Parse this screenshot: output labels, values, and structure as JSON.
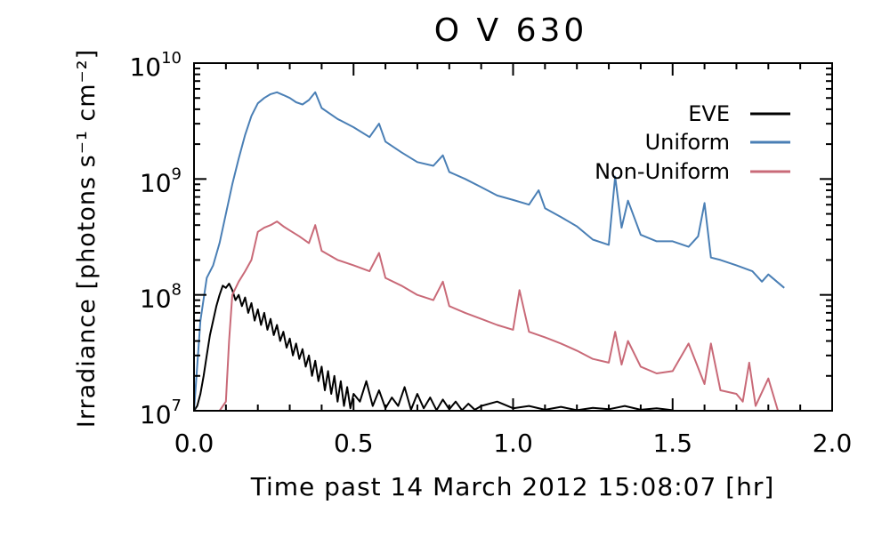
{
  "chart_data": {
    "type": "line",
    "title": "O V 630",
    "xlabel": "Time past 14 March 2012 15:08:07 [hr]",
    "ylabel": "Irradiance [photons s⁻¹ cm⁻²]",
    "xlim": [
      0.0,
      2.0
    ],
    "ylim": [
      10000000,
      10000000000
    ],
    "yscale": "log",
    "x_ticks": [
      "0.0",
      "0.5",
      "1.0",
      "1.5",
      "2.0"
    ],
    "y_ticks": [
      {
        "value": 10000000,
        "base": "10",
        "exp": "7"
      },
      {
        "value": 100000000,
        "base": "10",
        "exp": "8"
      },
      {
        "value": 1000000000,
        "base": "10",
        "exp": "9"
      },
      {
        "value": 10000000000,
        "base": "10",
        "exp": "10"
      }
    ],
    "legend_position": "top-right",
    "grid": false,
    "series": [
      {
        "name": "EVE",
        "color": "#000000",
        "x": [
          0.0,
          0.01,
          0.02,
          0.03,
          0.04,
          0.05,
          0.06,
          0.07,
          0.08,
          0.09,
          0.1,
          0.11,
          0.12,
          0.13,
          0.14,
          0.15,
          0.16,
          0.17,
          0.18,
          0.19,
          0.2,
          0.21,
          0.22,
          0.23,
          0.24,
          0.25,
          0.26,
          0.27,
          0.28,
          0.29,
          0.3,
          0.31,
          0.32,
          0.33,
          0.34,
          0.35,
          0.36,
          0.37,
          0.38,
          0.39,
          0.4,
          0.41,
          0.42,
          0.43,
          0.44,
          0.45,
          0.46,
          0.47,
          0.48,
          0.49,
          0.5,
          0.52,
          0.54,
          0.56,
          0.58,
          0.6,
          0.62,
          0.64,
          0.66,
          0.68,
          0.7,
          0.72,
          0.74,
          0.76,
          0.78,
          0.8,
          0.82,
          0.84,
          0.86,
          0.88,
          0.9,
          0.95,
          1.0,
          1.05,
          1.1,
          1.15,
          1.2,
          1.25,
          1.3,
          1.35,
          1.4,
          1.45,
          1.5
        ],
        "y": [
          10000000,
          11000000,
          14000000,
          20000000,
          30000000,
          45000000,
          60000000,
          80000000,
          100000000,
          120000000,
          115000000,
          125000000,
          110000000,
          90000000,
          100000000,
          80000000,
          95000000,
          70000000,
          85000000,
          60000000,
          75000000,
          55000000,
          70000000,
          50000000,
          62000000,
          45000000,
          55000000,
          40000000,
          48000000,
          35000000,
          42000000,
          30000000,
          38000000,
          28000000,
          34000000,
          24000000,
          30000000,
          20000000,
          27000000,
          18000000,
          24000000,
          15000000,
          22000000,
          14000000,
          20000000,
          12000000,
          18000000,
          11000000,
          16000000,
          10500000,
          14000000,
          12000000,
          18000000,
          11000000,
          15000000,
          10500000,
          13000000,
          11000000,
          16000000,
          10200000,
          14000000,
          10500000,
          13000000,
          10100000,
          12500000,
          10300000,
          12000000,
          10100000,
          11500000,
          10200000,
          11000000,
          12000000,
          10500000,
          11000000,
          10200000,
          10800000,
          10100000,
          10600000,
          10300000,
          11000000,
          10200000,
          10500000,
          10100000
        ]
      },
      {
        "name": "Uniform",
        "color": "#4a7fb5",
        "x": [
          0.0,
          0.02,
          0.04,
          0.06,
          0.08,
          0.1,
          0.12,
          0.14,
          0.16,
          0.18,
          0.2,
          0.22,
          0.24,
          0.26,
          0.28,
          0.3,
          0.32,
          0.34,
          0.36,
          0.38,
          0.4,
          0.45,
          0.5,
          0.55,
          0.58,
          0.6,
          0.65,
          0.7,
          0.75,
          0.78,
          0.8,
          0.85,
          0.9,
          0.95,
          1.0,
          1.05,
          1.08,
          1.1,
          1.15,
          1.2,
          1.25,
          1.3,
          1.32,
          1.34,
          1.36,
          1.4,
          1.45,
          1.5,
          1.55,
          1.58,
          1.6,
          1.62,
          1.65,
          1.7,
          1.75,
          1.78,
          1.8,
          1.85
        ],
        "y": [
          10000000,
          60000000,
          140000000,
          180000000,
          280000000,
          500000000,
          900000000,
          1500000000,
          2400000000,
          3500000000,
          4500000000,
          5000000000,
          5400000000,
          5600000000,
          5300000000,
          5000000000,
          4600000000,
          4400000000,
          4800000000,
          5600000000,
          4100000000,
          3300000000,
          2800000000,
          2300000000,
          3000000000,
          2100000000,
          1700000000,
          1400000000,
          1300000000,
          1600000000,
          1150000000,
          1000000000,
          850000000,
          720000000,
          660000000,
          600000000,
          800000000,
          560000000,
          470000000,
          390000000,
          300000000,
          270000000,
          1050000000,
          380000000,
          650000000,
          330000000,
          290000000,
          290000000,
          260000000,
          320000000,
          620000000,
          210000000,
          200000000,
          180000000,
          160000000,
          130000000,
          150000000,
          115000000
        ]
      },
      {
        "name": "Non-Uniform",
        "color": "#c96a78",
        "x": [
          0.0,
          0.05,
          0.08,
          0.1,
          0.11,
          0.12,
          0.14,
          0.16,
          0.18,
          0.2,
          0.22,
          0.24,
          0.26,
          0.28,
          0.3,
          0.33,
          0.36,
          0.38,
          0.4,
          0.45,
          0.5,
          0.55,
          0.58,
          0.6,
          0.65,
          0.7,
          0.75,
          0.78,
          0.8,
          0.85,
          0.9,
          0.95,
          1.0,
          1.02,
          1.05,
          1.1,
          1.15,
          1.2,
          1.25,
          1.3,
          1.32,
          1.34,
          1.36,
          1.4,
          1.45,
          1.5,
          1.55,
          1.6,
          1.62,
          1.65,
          1.7,
          1.72,
          1.74,
          1.76,
          1.8,
          1.83
        ],
        "y": [
          10000000,
          10000000,
          10000000,
          12000000,
          40000000,
          100000000,
          130000000,
          160000000,
          200000000,
          350000000,
          380000000,
          400000000,
          430000000,
          390000000,
          360000000,
          320000000,
          280000000,
          400000000,
          240000000,
          200000000,
          180000000,
          160000000,
          230000000,
          140000000,
          120000000,
          100000000,
          90000000,
          130000000,
          80000000,
          70000000,
          62000000,
          55000000,
          50000000,
          110000000,
          48000000,
          43000000,
          38000000,
          33000000,
          28000000,
          26000000,
          48000000,
          25000000,
          40000000,
          24000000,
          21000000,
          22000000,
          38000000,
          17000000,
          38000000,
          15000000,
          14000000,
          12000000,
          26000000,
          11000000,
          19000000,
          10000000
        ]
      }
    ]
  }
}
